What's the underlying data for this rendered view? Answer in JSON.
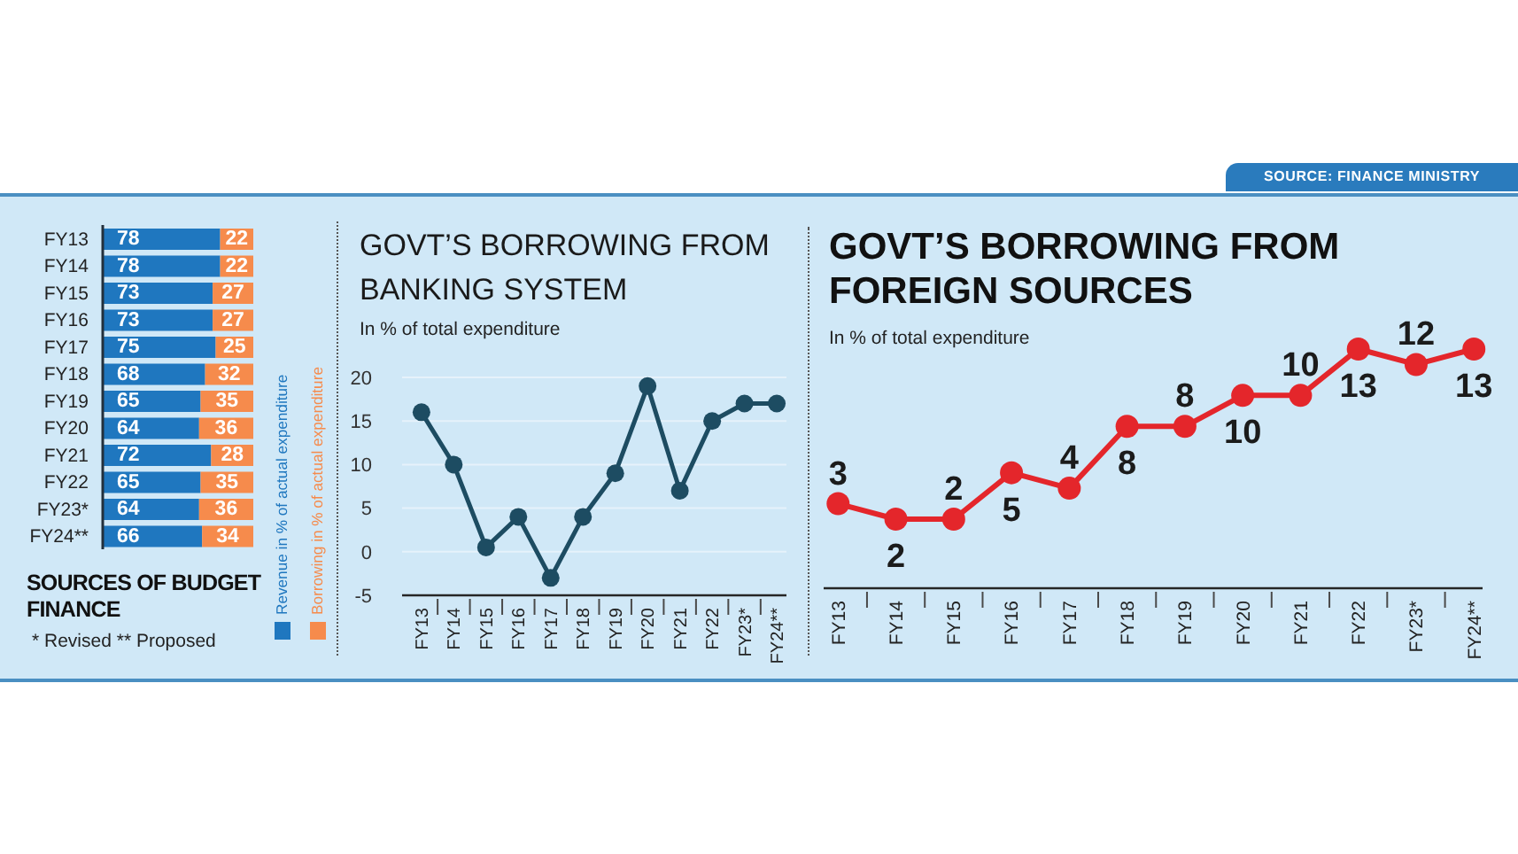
{
  "chart_data": [
    {
      "type": "bar",
      "orientation": "horizontal",
      "stacked": true,
      "title": "SOURCES OF BUDGET FINANCE",
      "categories": [
        "FY13",
        "FY14",
        "FY15",
        "FY16",
        "FY17",
        "FY18",
        "FY19",
        "FY20",
        "FY21",
        "FY22",
        "FY23*",
        "FY24**"
      ],
      "series": [
        {
          "name": "Revenue in % of actual expenditure",
          "color": "#1f77bf",
          "values": [
            78,
            78,
            73,
            73,
            75,
            68,
            65,
            64,
            72,
            65,
            64,
            66
          ]
        },
        {
          "name": "Borrowing in % of actual expenditure",
          "color": "#f68b4c",
          "values": [
            22,
            22,
            27,
            27,
            25,
            32,
            35,
            36,
            28,
            35,
            36,
            34
          ]
        }
      ],
      "data_labels": true,
      "legend": "right",
      "tick_labels": "y",
      "annotations": [
        "* Revised ** Proposed"
      ]
    },
    {
      "type": "line",
      "title": "GOVT’S BORROWING FROM BANKING SYSTEM",
      "subtitle": "In % of total expenditure",
      "categories": [
        "FY13",
        "FY14",
        "FY15",
        "FY16",
        "FY17",
        "FY18",
        "FY19",
        "FY20",
        "FY21",
        "FY22",
        "FY23*",
        "FY24**"
      ],
      "values": [
        16,
        10,
        0.5,
        4,
        -3,
        4,
        9,
        19,
        7,
        15,
        17,
        17
      ],
      "color": "#1d4c62",
      "ylim": [
        -5,
        20
      ],
      "yticks": [
        -5,
        0,
        5,
        10,
        15,
        20
      ],
      "grid": "y",
      "marker": "circle"
    },
    {
      "type": "line",
      "title": "GOVT’S BORROWING FROM FOREIGN SOURCES",
      "subtitle": "In % of total expenditure",
      "categories": [
        "FY13",
        "FY14",
        "FY15",
        "FY16",
        "FY17",
        "FY18",
        "FY19",
        "FY20",
        "FY21",
        "FY22",
        "FY23*",
        "FY24**"
      ],
      "values": [
        3,
        2,
        2,
        5,
        4,
        8,
        8,
        10,
        10,
        13,
        12,
        13
      ],
      "color": "#e4262b",
      "data_labels": true,
      "marker": "circle",
      "tick_labels": "x",
      "annotations": [
        "SOURCE: FINANCE MINISTRY"
      ]
    }
  ]
}
